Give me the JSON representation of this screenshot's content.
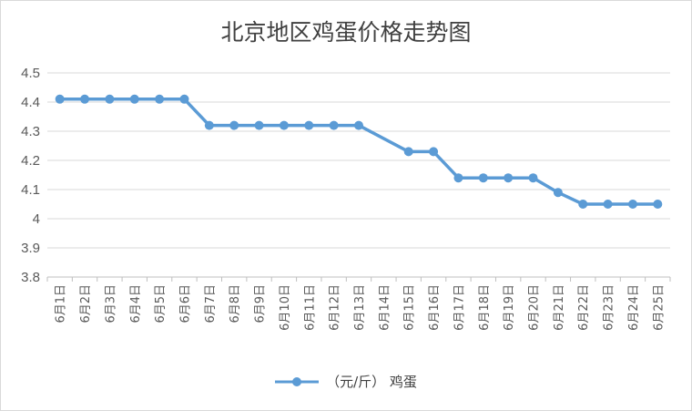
{
  "chart_data": {
    "type": "line",
    "title": "北京地区鸡蛋价格走势图",
    "categories": [
      "6月1日",
      "6月2日",
      "6月3日",
      "6月4日",
      "6月5日",
      "6月6日",
      "6月7日",
      "6月8日",
      "6月9日",
      "6月10日",
      "6月11日",
      "6月12日",
      "6月13日",
      "6月14日",
      "6月15日",
      "6月16日",
      "6月17日",
      "6月18日",
      "6月19日",
      "6月20日",
      "6月21日",
      "6月22日",
      "6月23日",
      "6月24日",
      "6月25日"
    ],
    "series": [
      {
        "name": "（元/斤） 鸡蛋",
        "values": [
          4.41,
          4.41,
          4.41,
          4.41,
          4.41,
          4.41,
          4.32,
          4.32,
          4.32,
          4.32,
          4.32,
          4.32,
          4.32,
          null,
          4.23,
          4.23,
          4.14,
          4.14,
          4.14,
          4.14,
          4.09,
          4.05,
          4.05,
          4.05,
          4.05
        ]
      }
    ],
    "ylim": [
      3.8,
      4.5
    ],
    "yticks": [
      "4.5",
      "4.4",
      "4.3",
      "4.2",
      "4.1",
      "4",
      "3.9",
      "3.8"
    ],
    "grid": true,
    "legend": "bottom",
    "colors": {
      "line": "#5b9bd5",
      "grid": "#d9d9d9",
      "text": "#595959"
    }
  }
}
